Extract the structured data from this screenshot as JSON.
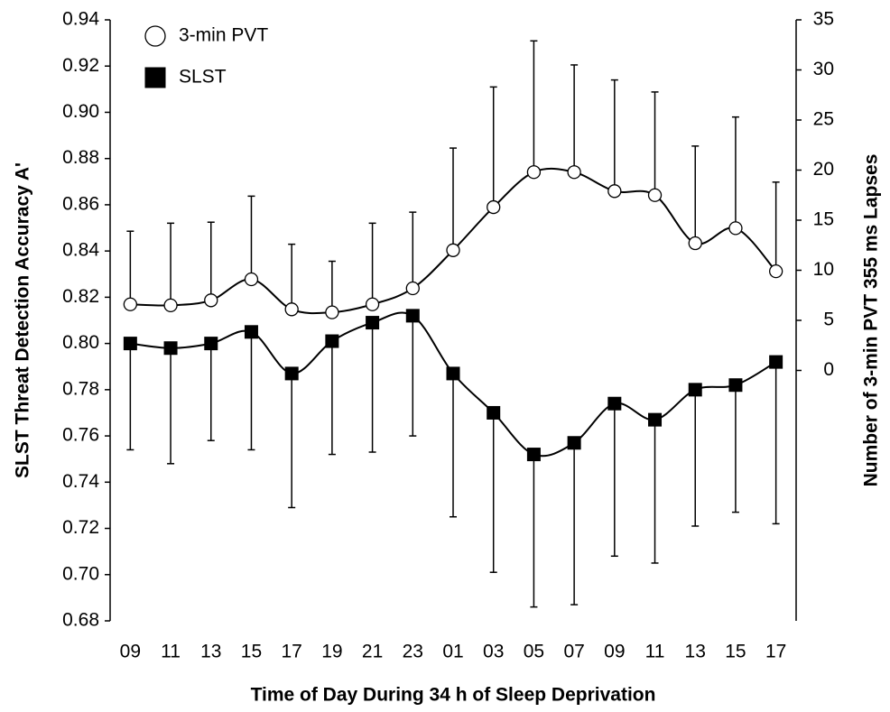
{
  "chart_data": {
    "type": "line",
    "xlabel": "Time of Day During 34 h of Sleep Deprivation",
    "ylabel": "SLST Threat Detection Accuracy A'",
    "y2label": "Number of 3-min PVT 355 ms Lapses",
    "categories": [
      "09",
      "11",
      "13",
      "15",
      "17",
      "19",
      "21",
      "23",
      "01",
      "03",
      "05",
      "07",
      "09",
      "11",
      "13",
      "15",
      "17"
    ],
    "ylim": [
      0.68,
      0.94
    ],
    "yticks": [
      0.94,
      0.92,
      {
        "value": 0.9,
        "label": "0.90"
      },
      0.88,
      0.86,
      0.84,
      0.82,
      {
        "value": 0.8,
        "label": "0.80"
      },
      0.78,
      0.76,
      0.74,
      0.72,
      {
        "value": 0.7,
        "label": "0.70"
      },
      0.68
    ],
    "y2lim": [
      -25,
      35
    ],
    "y2ticks": [
      0,
      5,
      10,
      15,
      20,
      25,
      30,
      35
    ],
    "legend": "top-left",
    "series": [
      {
        "name": "3-min PVT",
        "axis": "y2",
        "marker": "circle",
        "color": "#ffffff",
        "error_direction": "up",
        "values": [
          6.6,
          6.5,
          7.0,
          9.1,
          6.1,
          5.8,
          6.6,
          8.2,
          12.0,
          16.3,
          19.8,
          19.8,
          17.9,
          17.5,
          12.7,
          14.2,
          9.9
        ],
        "errors": [
          7.3,
          8.2,
          7.8,
          8.3,
          6.5,
          5.1,
          8.1,
          7.6,
          10.2,
          12.0,
          13.1,
          10.7,
          11.1,
          10.3,
          9.7,
          11.1,
          8.9
        ]
      },
      {
        "name": "SLST",
        "axis": "y",
        "marker": "square",
        "color": "#000000",
        "error_direction": "down",
        "values": [
          0.8,
          0.798,
          0.8,
          0.805,
          0.787,
          0.801,
          0.809,
          0.812,
          0.787,
          0.77,
          0.752,
          0.757,
          0.774,
          0.767,
          0.78,
          0.782,
          0.792
        ],
        "errors": [
          0.046,
          0.05,
          0.042,
          0.051,
          0.058,
          0.049,
          0.056,
          0.052,
          0.062,
          0.069,
          0.066,
          0.07,
          0.066,
          0.062,
          0.059,
          0.055,
          0.07
        ]
      }
    ]
  }
}
